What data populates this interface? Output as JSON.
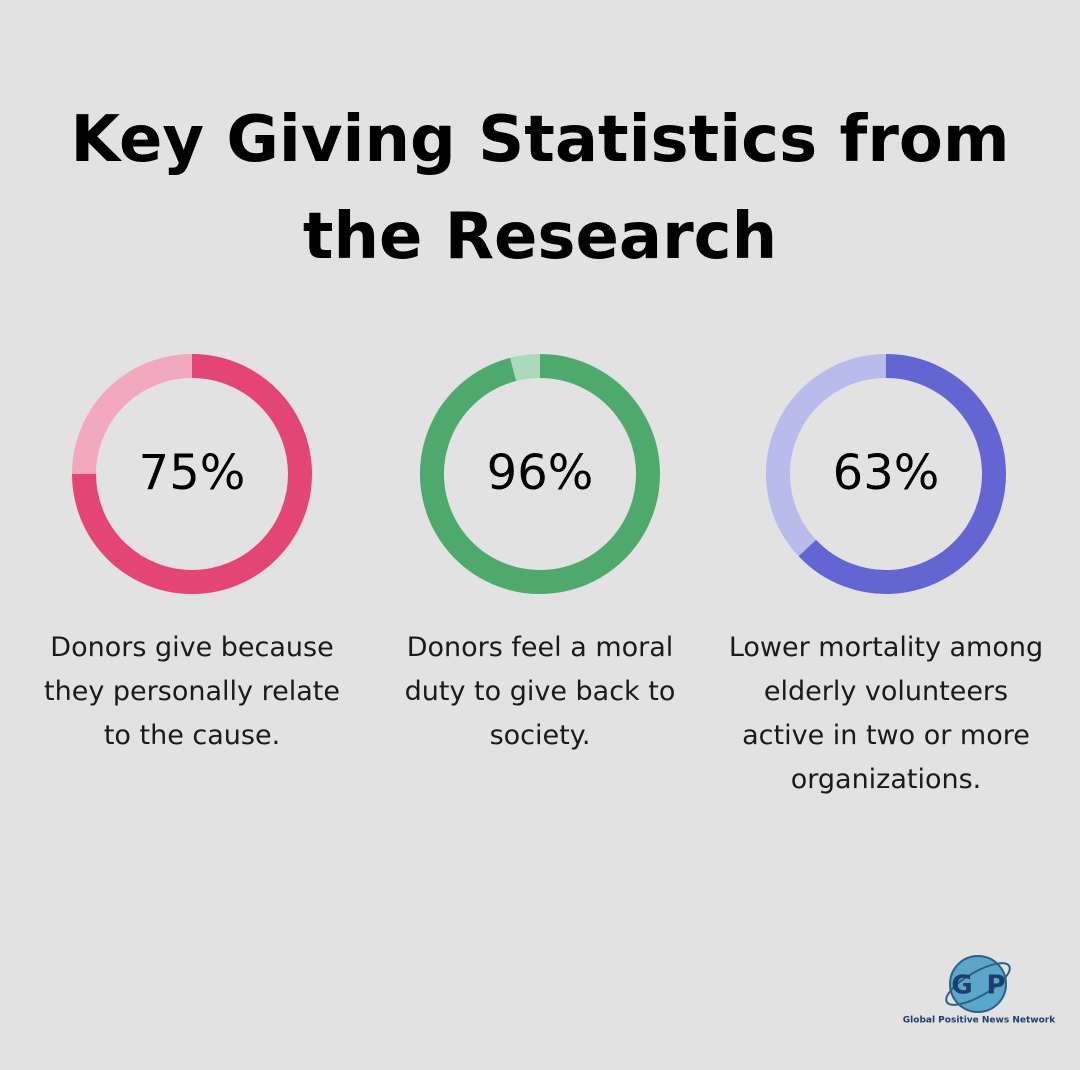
{
  "title": "Key Giving Statistics from the Research",
  "chart_data": [
    {
      "type": "donut",
      "values": [
        75,
        25
      ],
      "value_labels": [
        "75%",
        null
      ],
      "colors": [
        "#e44575",
        "#f2a9bf"
      ],
      "caption": "Donors give because they personally relate to the cause."
    },
    {
      "type": "donut",
      "values": [
        96,
        4
      ],
      "value_labels": [
        "96%",
        null
      ],
      "colors": [
        "#4ea96c",
        "#acd9b9"
      ],
      "caption": "Donors feel a moral duty to give back to society."
    },
    {
      "type": "donut",
      "values": [
        63,
        37
      ],
      "value_labels": [
        "63%",
        null
      ],
      "colors": [
        "#6366d2",
        "#b9bbea"
      ],
      "caption": "Lower mortality among elderly volunteers active in two or more organizations."
    }
  ],
  "logo": {
    "letters": [
      "G",
      "P"
    ],
    "name": "Global Positive News Network"
  }
}
